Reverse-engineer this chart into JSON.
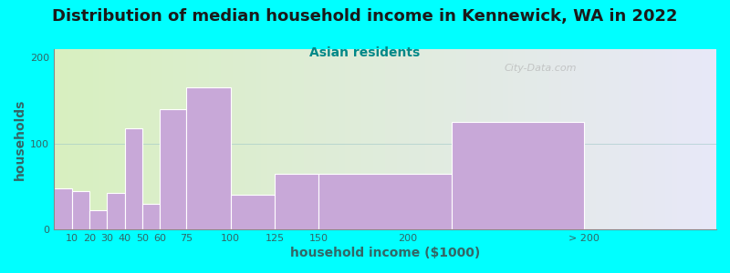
{
  "title": "Distribution of median household income in Kennewick, WA in 2022",
  "subtitle": "Asian residents",
  "xlabel": "household income ($1000)",
  "ylabel": "households",
  "background_color": "#00FFFF",
  "bar_color": "#c8a8d8",
  "bar_edge_color": "#ffffff",
  "watermark": "City-Data.com",
  "bar_lefts": [
    0,
    10,
    20,
    30,
    40,
    50,
    60,
    75,
    100,
    125,
    150,
    225
  ],
  "bar_widths": [
    10,
    10,
    10,
    10,
    10,
    10,
    15,
    25,
    25,
    25,
    75,
    75
  ],
  "values": [
    48,
    45,
    22,
    42,
    118,
    30,
    140,
    165,
    40,
    65,
    65,
    125
  ],
  "xtick_positions": [
    10,
    20,
    30,
    40,
    50,
    60,
    75,
    100,
    125,
    150,
    200,
    300
  ],
  "xtick_labels": [
    "10",
    "20",
    "30",
    "40",
    "50",
    "60",
    "75",
    "100",
    "125",
    "150",
    "200",
    "> 200"
  ],
  "xlim": [
    0,
    375
  ],
  "ylim": [
    0,
    210
  ],
  "yticks": [
    0,
    100,
    200
  ],
  "title_fontsize": 13,
  "subtitle_fontsize": 10,
  "axis_label_fontsize": 10,
  "tick_fontsize": 8,
  "label_color": "#336666",
  "subtitle_color": "#008888"
}
